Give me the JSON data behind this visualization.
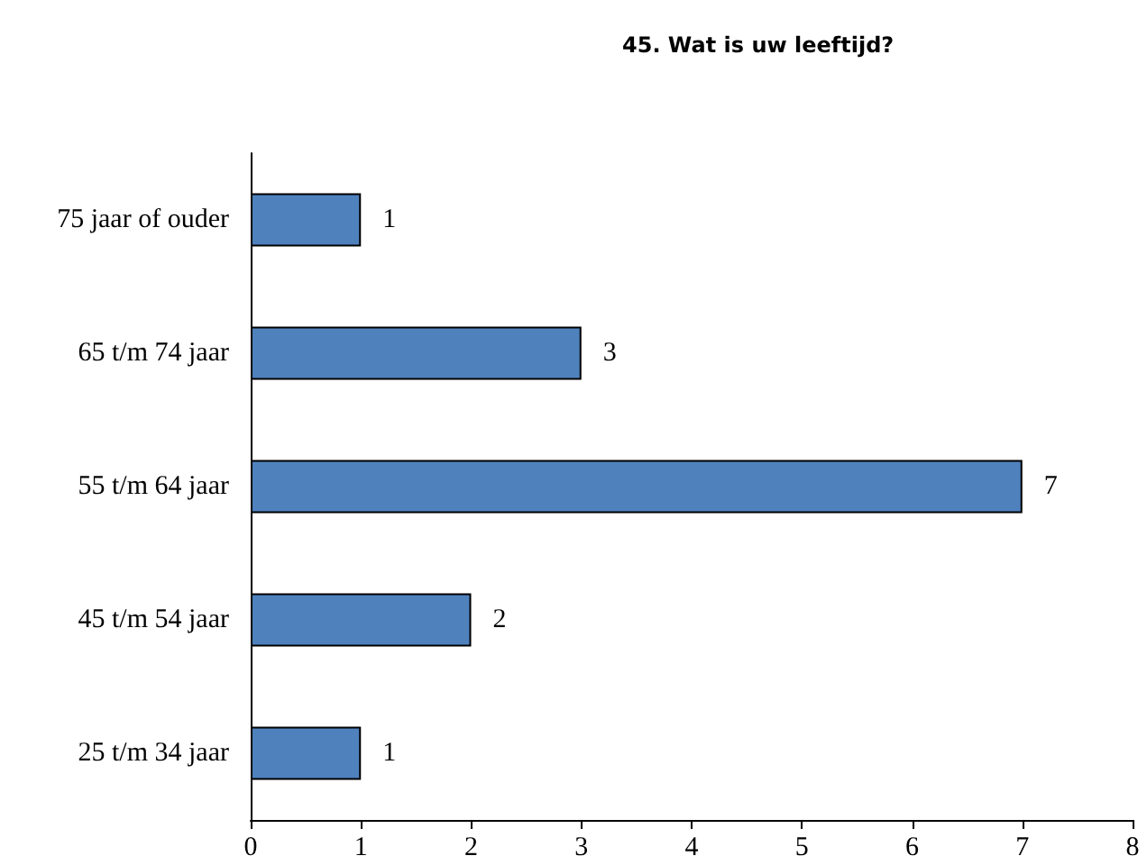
{
  "chart_data": {
    "type": "bar",
    "orientation": "horizontal",
    "title": "45. Wat is uw leeftijd?",
    "categories": [
      "75 jaar of ouder",
      "65 t/m 74 jaar",
      "55 t/m 64 jaar",
      "45 t/m 54 jaar",
      "25 t/m 34 jaar"
    ],
    "values": [
      1,
      3,
      7,
      2,
      1
    ],
    "color": "#4f81bd",
    "xlim": [
      0,
      8
    ],
    "xticks": [
      0,
      1,
      2,
      3,
      4,
      5,
      6,
      7,
      8
    ],
    "data_labels": true,
    "grid": false
  }
}
